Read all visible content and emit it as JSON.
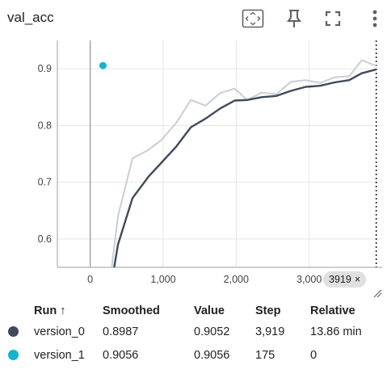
{
  "title": "val_acc",
  "toolbar": {
    "icons": [
      "fit-domain-icon",
      "pin-icon",
      "fullscreen-icon",
      "more-vert-icon"
    ]
  },
  "badge": {
    "label": "3919",
    "close": "×"
  },
  "colors": {
    "version_0": "#3e4a5c",
    "version_0_raw": "#c9cdd5",
    "version_1": "#12b5cb"
  },
  "table": {
    "headers": {
      "run": "Run ↑",
      "smoothed": "Smoothed",
      "value": "Value",
      "step": "Step",
      "relative": "Relative"
    },
    "rows": [
      {
        "run": "version_0",
        "smoothed": "0.8987",
        "value": "0.9052",
        "step": "3,919",
        "relative": "13.86 min",
        "color": "#3e4a5c"
      },
      {
        "run": "version_1",
        "smoothed": "0.9056",
        "value": "0.9056",
        "step": "175",
        "relative": "0",
        "color": "#12b5cb"
      }
    ]
  },
  "chart_data": {
    "type": "line",
    "title": "val_acc",
    "xlabel": "",
    "ylabel": "",
    "xlim": [
      -450,
      4000
    ],
    "ylim": [
      0.55,
      0.95
    ],
    "x_ticks": [
      0,
      1000,
      2000,
      3000
    ],
    "x_tick_labels": [
      "0",
      "1,000",
      "2,000",
      "3,000"
    ],
    "y_ticks": [
      0.6,
      0.7,
      0.8,
      0.9
    ],
    "y_tick_labels": [
      "0.6",
      "0.7",
      "0.8",
      "0.9"
    ],
    "grid": true,
    "hover_step": 3919,
    "series": [
      {
        "name": "version_0",
        "style": "raw",
        "x": [
          200,
          380,
          580,
          800,
          980,
          1180,
          1380,
          1580,
          1780,
          1980,
          2150,
          2350,
          2550,
          2750,
          2950,
          3150,
          3350,
          3550,
          3720,
          3919
        ],
        "y": [
          0.45,
          0.64,
          0.742,
          0.757,
          0.775,
          0.805,
          0.845,
          0.835,
          0.857,
          0.865,
          0.845,
          0.858,
          0.855,
          0.877,
          0.88,
          0.875,
          0.885,
          0.887,
          0.915,
          0.905
        ]
      },
      {
        "name": "version_0",
        "style": "smoothed",
        "x": [
          200,
          380,
          580,
          800,
          980,
          1180,
          1380,
          1580,
          1780,
          1980,
          2150,
          2350,
          2550,
          2750,
          2950,
          3150,
          3350,
          3550,
          3720,
          3919
        ],
        "y": [
          0.45,
          0.59,
          0.672,
          0.71,
          0.735,
          0.763,
          0.797,
          0.812,
          0.83,
          0.844,
          0.845,
          0.85,
          0.852,
          0.861,
          0.868,
          0.87,
          0.876,
          0.88,
          0.892,
          0.8987
        ]
      },
      {
        "name": "version_1",
        "style": "point",
        "x": [
          175
        ],
        "y": [
          0.9056
        ]
      }
    ]
  }
}
